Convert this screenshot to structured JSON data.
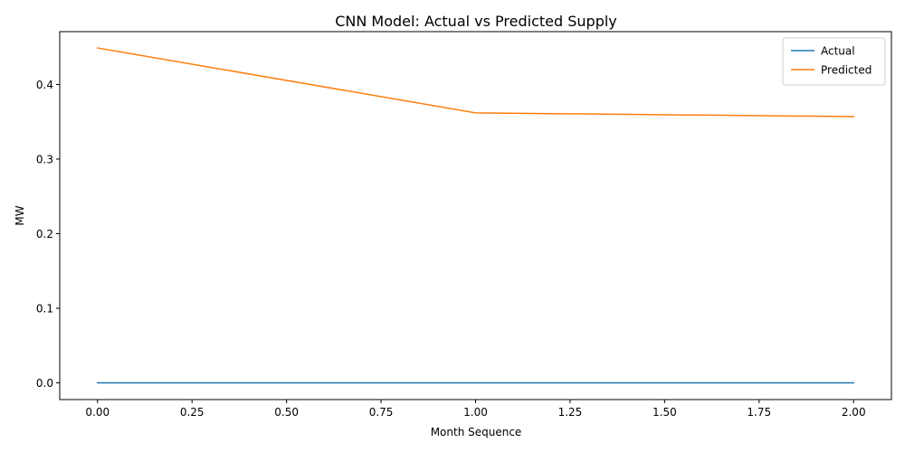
{
  "chart_data": {
    "type": "line",
    "title": "CNN Model: Actual vs Predicted Supply",
    "xlabel": "Month Sequence",
    "ylabel": "MW",
    "x": [
      0,
      1,
      2
    ],
    "xlim": [
      -0.1,
      2.1
    ],
    "ylim": [
      -0.0224,
      0.4709
    ],
    "xticks": [
      0.0,
      0.25,
      0.5,
      0.75,
      1.0,
      1.25,
      1.5,
      1.75,
      2.0
    ],
    "xtick_labels": [
      "0.00",
      "0.25",
      "0.50",
      "0.75",
      "1.00",
      "1.25",
      "1.50",
      "1.75",
      "2.00"
    ],
    "yticks": [
      0.0,
      0.1,
      0.2,
      0.3,
      0.4
    ],
    "ytick_labels": [
      "0.0",
      "0.1",
      "0.2",
      "0.3",
      "0.4"
    ],
    "grid": false,
    "legend_position": "top-right",
    "series": [
      {
        "name": "Actual",
        "values": [
          0.0,
          0.0,
          0.0
        ],
        "color": "#1f77b4"
      },
      {
        "name": "Predicted",
        "values": [
          0.449,
          0.362,
          0.357
        ],
        "color": "#ff7f0e"
      }
    ]
  }
}
